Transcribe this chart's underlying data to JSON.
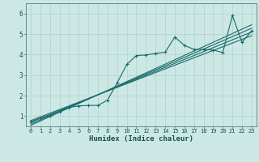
{
  "xlabel": "Humidex (Indice chaleur)",
  "xlim": [
    -0.5,
    23.5
  ],
  "ylim": [
    0.5,
    6.5
  ],
  "xticks": [
    0,
    1,
    2,
    3,
    4,
    5,
    6,
    7,
    8,
    9,
    10,
    11,
    12,
    13,
    14,
    15,
    16,
    17,
    18,
    19,
    20,
    21,
    22,
    23
  ],
  "yticks": [
    1,
    2,
    3,
    4,
    5,
    6
  ],
  "bg_color": "#cce8e4",
  "grid_color": "#b8d4d0",
  "line_color": "#1a6b6b",
  "main_x": [
    0,
    1,
    2,
    3,
    4,
    5,
    6,
    7,
    8,
    9,
    10,
    11,
    12,
    13,
    14,
    15,
    16,
    17,
    18,
    19,
    20,
    21,
    22,
    23
  ],
  "main_y": [
    0.72,
    0.9,
    1.02,
    1.22,
    1.42,
    1.5,
    1.52,
    1.52,
    1.78,
    2.62,
    3.52,
    3.95,
    3.98,
    4.05,
    4.12,
    4.85,
    4.45,
    4.25,
    4.25,
    4.22,
    4.1,
    5.9,
    4.6,
    5.15
  ],
  "trend_lines": [
    {
      "x": [
        0,
        23
      ],
      "y": [
        0.7,
        5.1
      ]
    },
    {
      "x": [
        0,
        23
      ],
      "y": [
        0.62,
        5.28
      ]
    },
    {
      "x": [
        0,
        23
      ],
      "y": [
        0.55,
        5.45
      ]
    },
    {
      "x": [
        0,
        23
      ],
      "y": [
        0.78,
        4.92
      ]
    }
  ]
}
